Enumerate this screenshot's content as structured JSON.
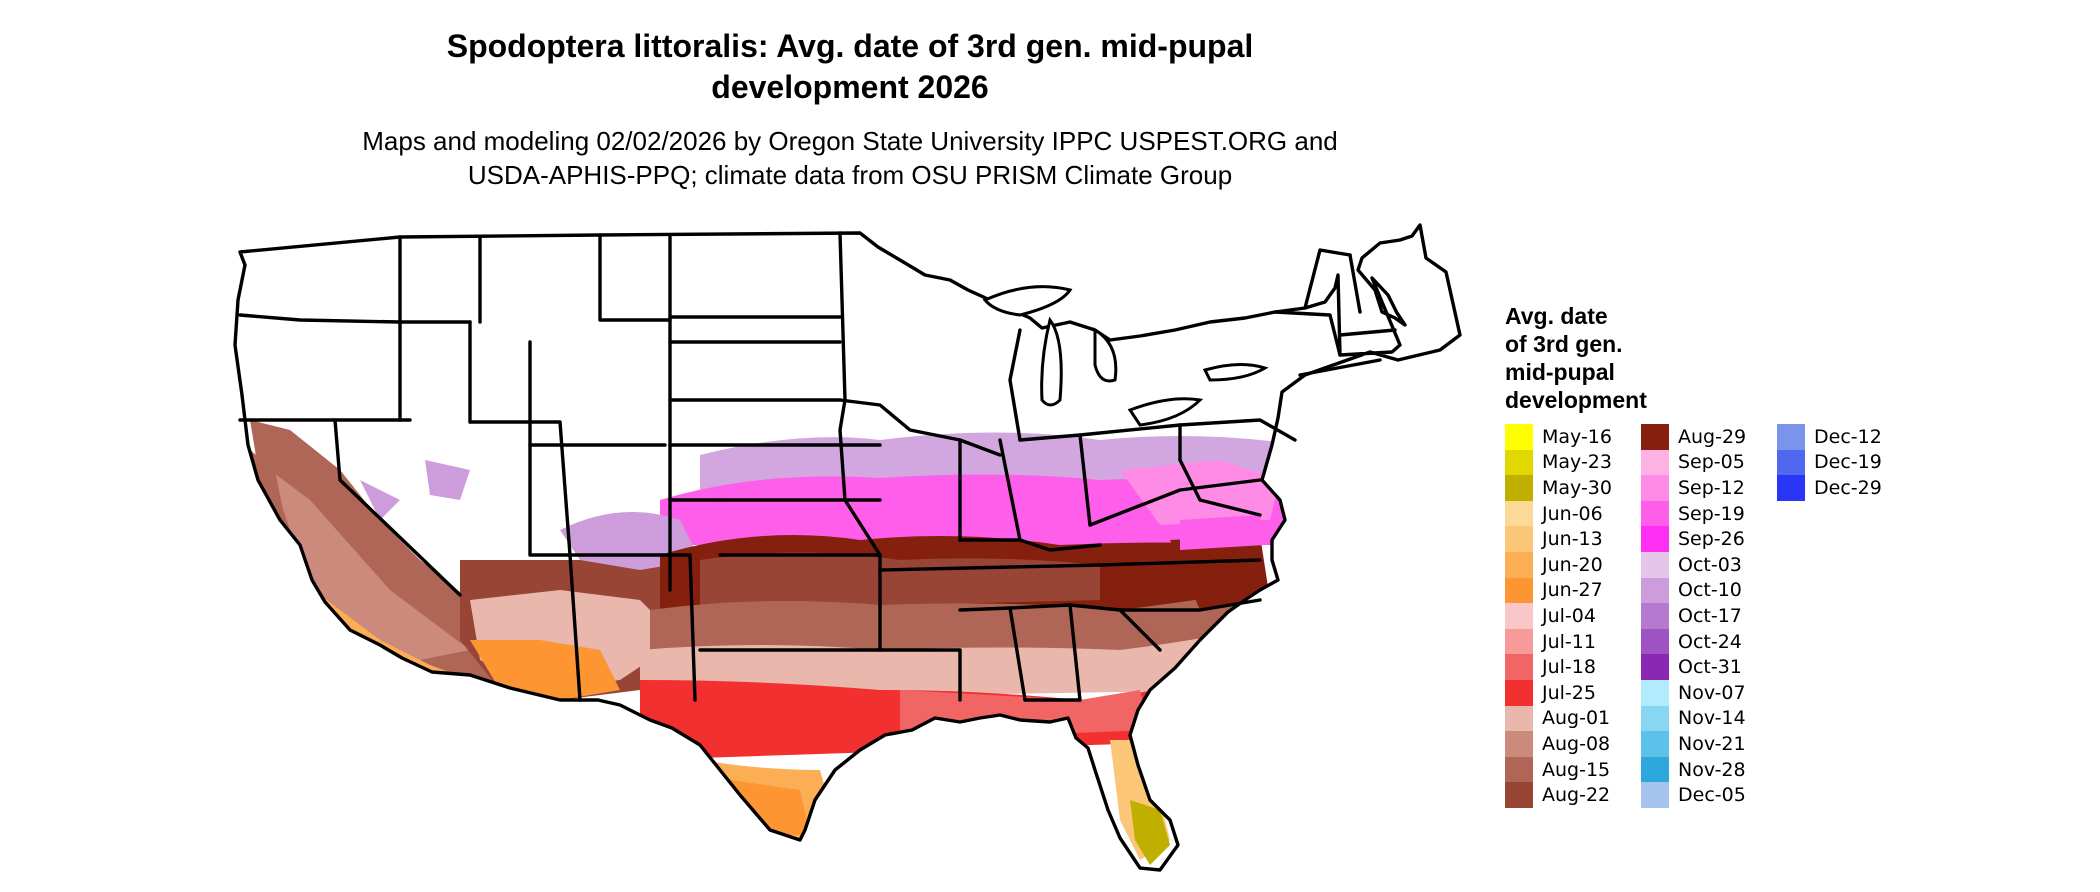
{
  "header": {
    "title_line1": "Spodoptera littoralis: Avg. date of 3rd gen. mid-pupal",
    "title_line2": "development 2026",
    "subtitle_line1": "Maps and modeling 02/02/2026 by Oregon State University IPPC USPEST.ORG and",
    "subtitle_line2": "USDA-APHIS-PPQ; climate data from OSU PRISM Climate Group"
  },
  "map": {
    "region": "Contiguous United States",
    "no_development_color": "#ffffff",
    "border_color": "#000000"
  },
  "legend": {
    "title_line1": "Avg. date",
    "title_line2": "of 3rd gen.",
    "title_line3": "mid-pupal",
    "title_line4": "development",
    "columns": [
      [
        {
          "label": "May-16",
          "color": "#ffff00"
        },
        {
          "label": "May-23",
          "color": "#e0d800"
        },
        {
          "label": "May-30",
          "color": "#bfb000"
        },
        {
          "label": "Jun-06",
          "color": "#fdd998"
        },
        {
          "label": "Jun-13",
          "color": "#fcc678"
        },
        {
          "label": "Jun-20",
          "color": "#fcae55"
        },
        {
          "label": "Jun-27",
          "color": "#fc9532"
        },
        {
          "label": "Jul-04",
          "color": "#f9c7c7"
        },
        {
          "label": "Jul-11",
          "color": "#f79a9a"
        },
        {
          "label": "Jul-18",
          "color": "#f26565"
        },
        {
          "label": "Jul-25",
          "color": "#f23030"
        },
        {
          "label": "Aug-01",
          "color": "#e9b7ac"
        },
        {
          "label": "Aug-08",
          "color": "#cc8a7c"
        },
        {
          "label": "Aug-15",
          "color": "#b06656"
        },
        {
          "label": "Aug-22",
          "color": "#984535"
        }
      ],
      [
        {
          "label": "Aug-29",
          "color": "#86200e"
        },
        {
          "label": "Sep-05",
          "color": "#feb2e4"
        },
        {
          "label": "Sep-12",
          "color": "#fe8ce6"
        },
        {
          "label": "Sep-19",
          "color": "#fe5ee9"
        },
        {
          "label": "Sep-26",
          "color": "#ff2ef2"
        },
        {
          "label": "Oct-03",
          "color": "#e5c5ea"
        },
        {
          "label": "Oct-10",
          "color": "#cd9ddb"
        },
        {
          "label": "Oct-17",
          "color": "#b57ad0"
        },
        {
          "label": "Oct-24",
          "color": "#9f53c3"
        },
        {
          "label": "Oct-31",
          "color": "#8a28b4"
        },
        {
          "label": "Nov-07",
          "color": "#b2ebfb"
        },
        {
          "label": "Nov-14",
          "color": "#88d7f2"
        },
        {
          "label": "Nov-21",
          "color": "#5cc2ea"
        },
        {
          "label": "Nov-28",
          "color": "#2ea7dd"
        },
        {
          "label": "Dec-05",
          "color": "#a5c3ec"
        }
      ],
      [
        {
          "label": "Dec-12",
          "color": "#7b94eb"
        },
        {
          "label": "Dec-19",
          "color": "#5068f0"
        },
        {
          "label": "Dec-29",
          "color": "#2a35f8"
        }
      ]
    ]
  }
}
